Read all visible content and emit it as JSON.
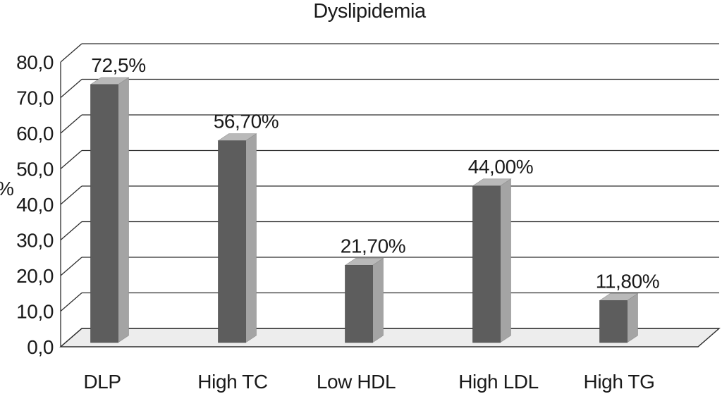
{
  "chart_data": {
    "type": "bar",
    "projection": "3d-oblique",
    "title": "Dyslipidemia",
    "xlabel": "",
    "ylabel": "%",
    "categories": [
      "DLP",
      "High TC",
      "Low HDL",
      "High LDL",
      "High TG"
    ],
    "values": [
      72.5,
      56.7,
      21.7,
      44.0,
      11.8
    ],
    "value_labels": [
      "72,5%",
      "56,70%",
      "21,70%",
      "44,00%",
      "11,80%"
    ],
    "ylim": [
      0,
      80
    ],
    "ytick_values": [
      80,
      70,
      60,
      50,
      40,
      30,
      20,
      10,
      0
    ],
    "ytick_labels": [
      "80,0",
      "70,0",
      "60,0",
      "50,0",
      "40,0",
      "30,0",
      "20,0",
      "10,0",
      "0,0"
    ],
    "grid": true,
    "legend": false,
    "colors": {
      "bar_front": "#5d5d5d",
      "bar_top": "#b9b9b9",
      "bar_side": "#a4a4a4",
      "floor": "#ededed",
      "line": "#2e2e2e",
      "text": "#1a1a1a",
      "background": "#ffffff"
    }
  }
}
